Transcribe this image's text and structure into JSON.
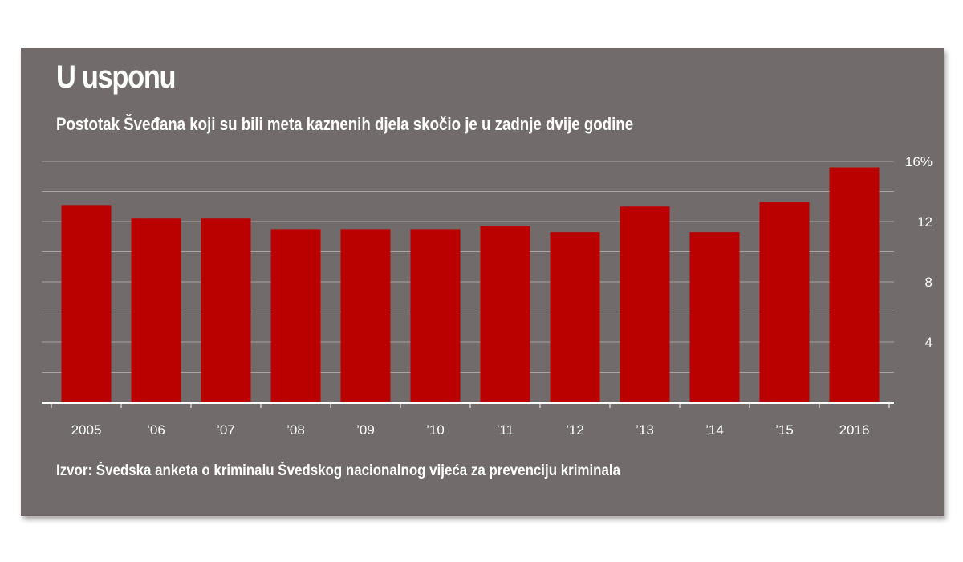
{
  "chart_data": {
    "type": "bar",
    "title": "U usponu",
    "subtitle": "Postotak Šveđana koji su bili meta kaznenih djela skočio je u zadnje dvije godine",
    "source": "Izvor: Švedska anketa o kriminalu Švedskog nacionalnog vijeća za prevenciju kriminala",
    "categories": [
      "2005",
      "’06",
      "’07",
      "’08",
      "’09",
      "’10",
      "’11",
      "’12",
      "’13",
      "’14",
      "’15",
      "2016"
    ],
    "values": [
      13.1,
      12.2,
      12.2,
      11.5,
      11.5,
      11.5,
      11.7,
      11.3,
      13.0,
      11.3,
      13.3,
      15.6
    ],
    "ylim": [
      0,
      16
    ],
    "yticks": [
      4,
      8,
      12,
      16
    ],
    "ytick_labels": [
      "4",
      "8",
      "12",
      "16%"
    ],
    "grid_values": [
      2,
      4,
      6,
      8,
      10,
      12,
      14,
      16
    ],
    "xlabel": "",
    "ylabel": "",
    "grid": true,
    "y_axis_position": "right",
    "bar_color": "#bb0000",
    "background_color": "#716b6b"
  }
}
